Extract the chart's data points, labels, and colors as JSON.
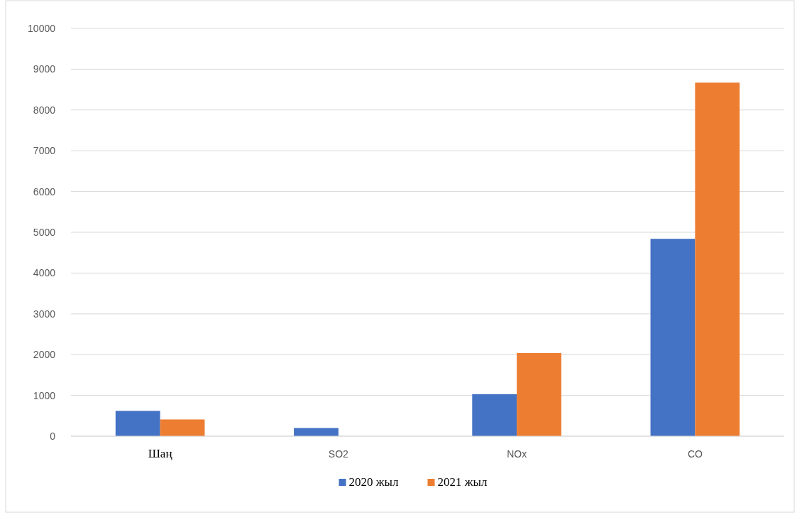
{
  "chart_data": {
    "type": "bar",
    "categories": [
      "Шаң",
      "SO2",
      "NOx",
      "CO"
    ],
    "series": [
      {
        "name": "2020 жыл",
        "color": "#4472c4",
        "values": [
          620,
          200,
          1030,
          4840
        ]
      },
      {
        "name": "2021 жыл",
        "color": "#ed7d31",
        "values": [
          410,
          0,
          2040,
          8670
        ]
      }
    ],
    "ylim": [
      0,
      10000
    ],
    "yticks": [
      0,
      1000,
      2000,
      3000,
      4000,
      5000,
      6000,
      7000,
      8000,
      9000,
      10000
    ],
    "grid": "y",
    "legend": "bottom"
  }
}
